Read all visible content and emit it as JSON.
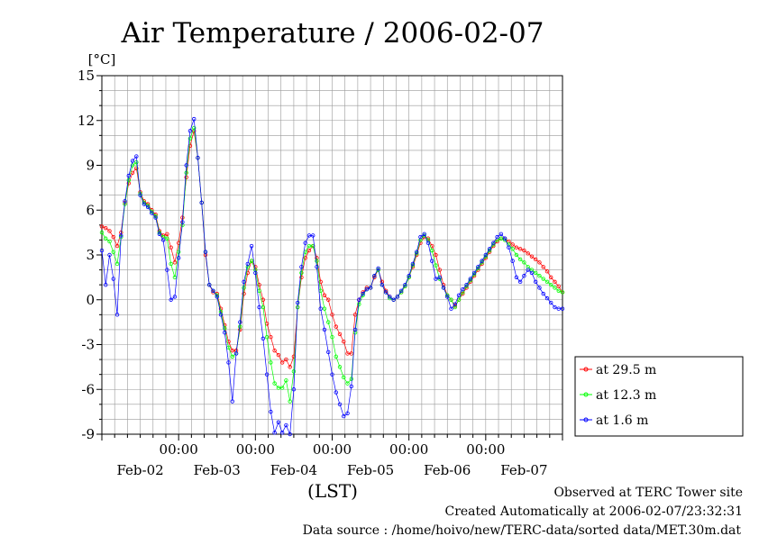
{
  "chart_data": {
    "type": "line",
    "title": "Air Temperature / 2006-02-07",
    "ylabel": "[°C]",
    "xlabel": "(LST)",
    "ylim": [
      -9,
      15
    ],
    "yticks": [
      -9,
      -6,
      -3,
      0,
      3,
      6,
      9,
      12,
      15
    ],
    "ytick_labels": [
      "-9",
      "-6",
      "-3",
      "0",
      "3",
      "6",
      "9",
      "12",
      "15"
    ],
    "xlim": [
      0,
      6
    ],
    "time_ticks": [
      {
        "x": 1,
        "time": "00:00"
      },
      {
        "x": 2,
        "time": "00:00"
      },
      {
        "x": 3,
        "time": "00:00"
      },
      {
        "x": 4,
        "time": "00:00"
      },
      {
        "x": 5,
        "time": "00:00"
      }
    ],
    "date_labels": [
      {
        "x": 0.5,
        "label": "Feb-02"
      },
      {
        "x": 1.5,
        "label": "Feb-03"
      },
      {
        "x": 2.5,
        "label": "Feb-04"
      },
      {
        "x": 3.5,
        "label": "Feb-05"
      },
      {
        "x": 4.5,
        "label": "Feb-06"
      },
      {
        "x": 5.5,
        "label": "Feb-07"
      }
    ],
    "grid": true,
    "legend_position": "right",
    "series": [
      {
        "name": "at 29.5 m",
        "color": "#ff0000",
        "x": [
          0.0,
          0.05,
          0.1,
          0.15,
          0.2,
          0.25,
          0.3,
          0.35,
          0.4,
          0.45,
          0.5,
          0.55,
          0.6,
          0.65,
          0.7,
          0.75,
          0.8,
          0.85,
          0.9,
          0.95,
          1.0,
          1.05,
          1.1,
          1.15,
          1.2,
          1.25,
          1.3,
          1.35,
          1.4,
          1.45,
          1.5,
          1.55,
          1.6,
          1.65,
          1.7,
          1.75,
          1.8,
          1.85,
          1.9,
          1.95,
          2.0,
          2.05,
          2.1,
          2.15,
          2.2,
          2.25,
          2.3,
          2.35,
          2.4,
          2.45,
          2.5,
          2.55,
          2.6,
          2.65,
          2.7,
          2.75,
          2.8,
          2.85,
          2.9,
          2.95,
          3.0,
          3.05,
          3.1,
          3.15,
          3.2,
          3.25,
          3.3,
          3.35,
          3.4,
          3.45,
          3.5,
          3.55,
          3.6,
          3.65,
          3.7,
          3.75,
          3.8,
          3.85,
          3.9,
          3.95,
          4.0,
          4.05,
          4.1,
          4.15,
          4.2,
          4.25,
          4.3,
          4.35,
          4.4,
          4.45,
          4.5,
          4.55,
          4.6,
          4.65,
          4.7,
          4.75,
          4.8,
          4.85,
          4.9,
          4.95,
          5.0,
          5.05,
          5.1,
          5.15,
          5.2,
          5.25,
          5.3,
          5.35,
          5.4,
          5.45,
          5.5,
          5.55,
          5.6,
          5.65,
          5.7,
          5.75,
          5.8,
          5.85,
          5.9,
          5.95,
          6.0
        ],
        "values": [
          4.9,
          4.8,
          4.6,
          4.2,
          3.6,
          4.5,
          6.5,
          7.8,
          8.5,
          8.8,
          7.2,
          6.6,
          6.4,
          6.0,
          5.7,
          4.6,
          4.3,
          4.4,
          3.5,
          2.5,
          3.8,
          5.5,
          8.2,
          10.3,
          11.3,
          9.5,
          6.5,
          3.0,
          1.0,
          0.5,
          0.4,
          -0.6,
          -1.7,
          -2.8,
          -3.4,
          -3.4,
          -2.0,
          0.4,
          1.8,
          2.6,
          2.2,
          1.0,
          0.0,
          -1.6,
          -2.5,
          -3.4,
          -3.7,
          -4.2,
          -4.0,
          -4.5,
          -3.8,
          -0.5,
          1.5,
          2.8,
          3.3,
          3.6,
          2.8,
          1.2,
          0.3,
          0.0,
          -1.0,
          -1.8,
          -2.3,
          -2.8,
          -3.6,
          -3.6,
          -1.0,
          0.0,
          0.5,
          0.8,
          0.8,
          1.5,
          2.0,
          1.2,
          0.6,
          0.2,
          0.0,
          0.2,
          0.5,
          0.9,
          1.5,
          2.2,
          3.0,
          3.8,
          4.2,
          4.1,
          3.6,
          3.0,
          2.0,
          1.0,
          0.3,
          0.0,
          -0.4,
          0.0,
          0.4,
          0.8,
          1.2,
          1.6,
          2.0,
          2.4,
          2.8,
          3.2,
          3.6,
          3.9,
          4.1,
          4.1,
          3.9,
          3.7,
          3.5,
          3.4,
          3.3,
          3.1,
          2.9,
          2.7,
          2.5,
          2.2,
          1.9,
          1.5,
          1.2,
          0.9,
          0.5
        ]
      },
      {
        "name": "at 12.3 m",
        "color": "#00ff00",
        "x": [
          0.0,
          0.05,
          0.1,
          0.15,
          0.2,
          0.25,
          0.3,
          0.35,
          0.4,
          0.45,
          0.5,
          0.55,
          0.6,
          0.65,
          0.7,
          0.75,
          0.8,
          0.85,
          0.9,
          0.95,
          1.0,
          1.05,
          1.1,
          1.15,
          1.2,
          1.25,
          1.3,
          1.35,
          1.4,
          1.45,
          1.5,
          1.55,
          1.6,
          1.65,
          1.7,
          1.75,
          1.8,
          1.85,
          1.9,
          1.95,
          2.0,
          2.05,
          2.1,
          2.15,
          2.2,
          2.25,
          2.3,
          2.35,
          2.4,
          2.45,
          2.5,
          2.55,
          2.6,
          2.65,
          2.7,
          2.75,
          2.8,
          2.85,
          2.9,
          2.95,
          3.0,
          3.05,
          3.1,
          3.15,
          3.2,
          3.25,
          3.3,
          3.35,
          3.4,
          3.45,
          3.5,
          3.55,
          3.6,
          3.65,
          3.7,
          3.75,
          3.8,
          3.85,
          3.9,
          3.95,
          4.0,
          4.05,
          4.1,
          4.15,
          4.2,
          4.25,
          4.3,
          4.35,
          4.4,
          4.45,
          4.5,
          4.55,
          4.6,
          4.65,
          4.7,
          4.75,
          4.8,
          4.85,
          4.9,
          4.95,
          5.0,
          5.05,
          5.1,
          5.15,
          5.2,
          5.25,
          5.3,
          5.35,
          5.4,
          5.45,
          5.5,
          5.55,
          5.6,
          5.65,
          5.7,
          5.75,
          5.8,
          5.85,
          5.9,
          5.95,
          6.0
        ],
        "values": [
          4.5,
          4.1,
          3.9,
          3.2,
          2.4,
          4.2,
          6.4,
          8.0,
          9.0,
          9.2,
          7.1,
          6.5,
          6.3,
          5.9,
          5.6,
          4.5,
          4.2,
          4.1,
          2.4,
          1.5,
          3.2,
          5.0,
          8.5,
          10.8,
          11.5,
          9.5,
          6.5,
          3.2,
          1.0,
          0.6,
          0.3,
          -0.8,
          -1.9,
          -3.2,
          -3.8,
          -3.6,
          -1.8,
          0.8,
          2.2,
          2.6,
          2.0,
          0.6,
          -0.5,
          -2.5,
          -4.2,
          -5.6,
          -5.9,
          -5.9,
          -5.4,
          -6.8,
          -4.8,
          -0.5,
          1.8,
          3.2,
          3.6,
          3.6,
          2.6,
          0.6,
          -0.6,
          -1.5,
          -2.5,
          -3.8,
          -4.5,
          -5.2,
          -5.6,
          -5.3,
          -2.2,
          -0.3,
          0.3,
          0.7,
          0.8,
          1.6,
          2.0,
          1.0,
          0.5,
          0.1,
          0.0,
          0.2,
          0.5,
          0.9,
          1.5,
          2.3,
          3.1,
          4.0,
          4.3,
          4.0,
          3.3,
          2.3,
          1.4,
          0.8,
          0.3,
          0.0,
          -0.5,
          0.0,
          0.5,
          0.9,
          1.3,
          1.7,
          2.1,
          2.5,
          2.9,
          3.3,
          3.7,
          4.0,
          4.1,
          4.0,
          3.7,
          3.4,
          3.0,
          2.7,
          2.5,
          2.2,
          2.0,
          1.8,
          1.6,
          1.4,
          1.2,
          1.0,
          0.8,
          0.6,
          0.5
        ]
      },
      {
        "name": "at 1.6 m",
        "color": "#0000ff",
        "x": [
          0.0,
          0.05,
          0.1,
          0.15,
          0.2,
          0.25,
          0.3,
          0.35,
          0.4,
          0.45,
          0.5,
          0.55,
          0.6,
          0.65,
          0.7,
          0.75,
          0.8,
          0.85,
          0.9,
          0.95,
          1.0,
          1.05,
          1.1,
          1.15,
          1.2,
          1.25,
          1.3,
          1.35,
          1.4,
          1.45,
          1.5,
          1.55,
          1.6,
          1.65,
          1.7,
          1.75,
          1.8,
          1.85,
          1.9,
          1.95,
          2.0,
          2.05,
          2.1,
          2.15,
          2.2,
          2.25,
          2.3,
          2.35,
          2.4,
          2.45,
          2.5,
          2.55,
          2.6,
          2.65,
          2.7,
          2.75,
          2.8,
          2.85,
          2.9,
          2.95,
          3.0,
          3.05,
          3.1,
          3.15,
          3.2,
          3.25,
          3.3,
          3.35,
          3.4,
          3.45,
          3.5,
          3.55,
          3.6,
          3.65,
          3.7,
          3.75,
          3.8,
          3.85,
          3.9,
          3.95,
          4.0,
          4.05,
          4.1,
          4.15,
          4.2,
          4.25,
          4.3,
          4.35,
          4.4,
          4.45,
          4.5,
          4.55,
          4.6,
          4.65,
          4.7,
          4.75,
          4.8,
          4.85,
          4.9,
          4.95,
          5.0,
          5.05,
          5.1,
          5.15,
          5.2,
          5.25,
          5.3,
          5.35,
          5.4,
          5.45,
          5.5,
          5.55,
          5.6,
          5.65,
          5.7,
          5.75,
          5.8,
          5.85,
          5.9,
          5.95,
          6.0
        ],
        "values": [
          3.3,
          1.0,
          3.0,
          1.4,
          -1.0,
          4.3,
          6.6,
          8.3,
          9.3,
          9.6,
          7.0,
          6.4,
          6.2,
          5.8,
          5.5,
          4.4,
          4.0,
          2.0,
          0.0,
          0.2,
          2.8,
          5.2,
          9.0,
          11.3,
          12.1,
          9.5,
          6.5,
          3.2,
          1.0,
          0.6,
          0.2,
          -1.0,
          -2.2,
          -4.2,
          -6.8,
          -3.6,
          -1.5,
          1.2,
          2.4,
          3.6,
          1.8,
          -0.5,
          -2.6,
          -5.0,
          -7.5,
          -8.9,
          -8.2,
          -8.9,
          -8.4,
          -9.0,
          -6.0,
          -0.2,
          2.2,
          3.8,
          4.3,
          4.3,
          2.2,
          -0.6,
          -2.0,
          -3.5,
          -5.0,
          -6.2,
          -7.0,
          -7.8,
          -7.6,
          -5.8,
          -2.0,
          0.0,
          0.4,
          0.7,
          0.8,
          1.6,
          2.1,
          1.0,
          0.5,
          0.2,
          0.0,
          0.2,
          0.6,
          1.0,
          1.6,
          2.4,
          3.2,
          4.2,
          4.4,
          3.8,
          2.6,
          1.4,
          1.5,
          0.8,
          0.2,
          -0.6,
          -0.3,
          0.3,
          0.7,
          1.0,
          1.4,
          1.8,
          2.2,
          2.6,
          3.0,
          3.4,
          3.8,
          4.2,
          4.4,
          4.1,
          3.5,
          2.6,
          1.5,
          1.2,
          1.6,
          2.0,
          1.8,
          1.2,
          0.8,
          0.4,
          0.1,
          -0.2,
          -0.5,
          -0.6,
          -0.6
        ]
      }
    ]
  },
  "footer": {
    "line1": "Observed at TERC Tower site",
    "line2": "Created Automatically at 2006-02-07/23:32:31",
    "line3": "Data source : /home/hoivo/new/TERC-data/sorted  data/MET.30m.dat"
  }
}
